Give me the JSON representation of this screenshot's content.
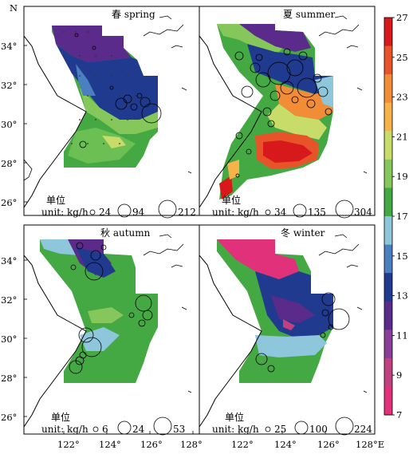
{
  "figure": {
    "north_label": "N",
    "east_label": "128°E"
  },
  "axes": {
    "lat_ticks": [
      "34°",
      "32°",
      "30°",
      "28°",
      "26°"
    ],
    "lon_ticks_bottom": [
      "122°",
      "124°",
      "126°",
      "128°"
    ]
  },
  "colorbar": {
    "ticks": [
      "27",
      "25",
      "23",
      "21",
      "19",
      "17",
      "15",
      "13",
      "11",
      "9",
      "7"
    ],
    "colors": [
      "#d7191c",
      "#e8542a",
      "#f28c36",
      "#f7b24a",
      "#c8dc6a",
      "#86c75b",
      "#44a843",
      "#8ec6dc",
      "#4a7fc0",
      "#203a8f",
      "#5a2b8a",
      "#8a3d99",
      "#c04080",
      "#e0317a"
    ]
  },
  "panels": [
    {
      "id": "spring",
      "title": "春 spring",
      "legend_cn": "单位",
      "legend_unit": "unit: kg/h",
      "legend_values": [
        "24",
        "94",
        "212"
      ]
    },
    {
      "id": "summer",
      "title": "夏 summer",
      "legend_cn": "单位",
      "legend_unit": "unit: kg/h",
      "legend_values": [
        "34",
        "135",
        "304"
      ]
    },
    {
      "id": "autumn",
      "title": "秋 autumn",
      "legend_cn": "单位",
      "legend_unit": "unit: kg/h",
      "legend_values": [
        "6",
        "24",
        "53"
      ]
    },
    {
      "id": "winter",
      "title": "冬 winter",
      "legend_cn": "单位",
      "legend_unit": "unit: kg/h",
      "legend_values": [
        "25",
        "100",
        "224"
      ]
    }
  ]
}
